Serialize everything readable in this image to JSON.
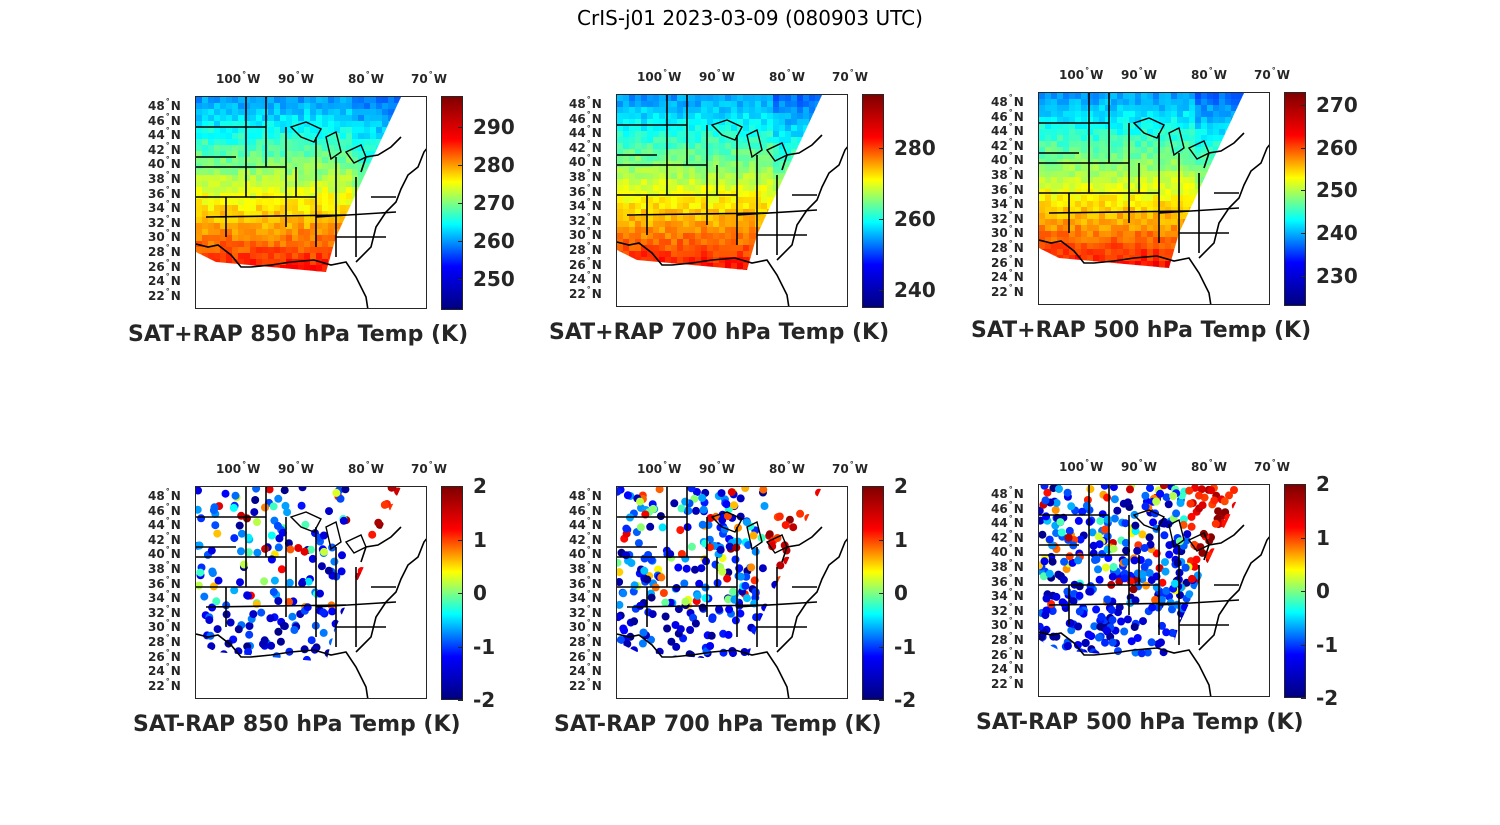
{
  "figure_title": "CrIS-j01 2023-03-09 (080903 UTC)",
  "lon_ticks": [
    "100",
    "90",
    "80",
    "70"
  ],
  "lon_hemisphere": "W",
  "lat_ticks": [
    "48",
    "46",
    "44",
    "42",
    "40",
    "38",
    "36",
    "34",
    "32",
    "30",
    "28",
    "26",
    "24",
    "22"
  ],
  "lat_hemisphere": "N",
  "colormap": "jet",
  "colors": {
    "dark_blue": "#00008f",
    "blue": "#0000ff",
    "cyan": "#00ffff",
    "yellow": "#ffff00",
    "red": "#ff0000",
    "dark_red": "#800000"
  },
  "panels": [
    {
      "title": "SAT+RAP 850 hPa Temp (K)",
      "kind": "field",
      "cbar_ticks": [
        "290",
        "280",
        "270",
        "260",
        "250"
      ],
      "cbar_range": [
        242,
        298
      ]
    },
    {
      "title": "SAT+RAP 700 hPa Temp (K)",
      "kind": "field",
      "cbar_ticks": [
        "280",
        "260",
        "240"
      ],
      "cbar_range": [
        235,
        295
      ]
    },
    {
      "title": "SAT+RAP 500 hPa Temp (K)",
      "kind": "field",
      "cbar_ticks": [
        "270",
        "260",
        "250",
        "240",
        "230"
      ],
      "cbar_range": [
        223,
        273
      ]
    },
    {
      "title": "SAT-RAP 850 hPa Temp (K)",
      "kind": "diff",
      "cbar_ticks": [
        "2",
        "1",
        "0",
        "-1",
        "-2"
      ],
      "cbar_range": [
        -2,
        2
      ]
    },
    {
      "title": "SAT-RAP 700 hPa Temp (K)",
      "kind": "diff",
      "cbar_ticks": [
        "2",
        "1",
        "0",
        "-1",
        "-2"
      ],
      "cbar_range": [
        -2,
        2
      ]
    },
    {
      "title": "SAT-RAP 500 hPa Temp (K)",
      "kind": "diff",
      "cbar_ticks": [
        "2",
        "1",
        "0",
        "-1",
        "-2"
      ],
      "cbar_range": [
        -2,
        2
      ]
    }
  ]
}
